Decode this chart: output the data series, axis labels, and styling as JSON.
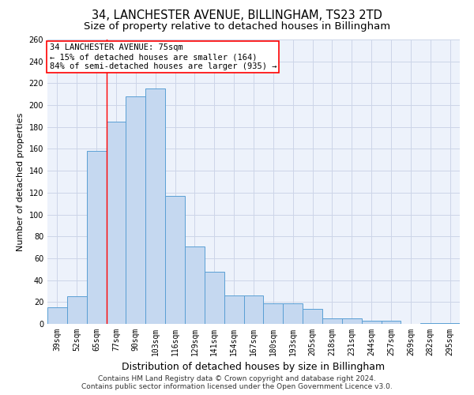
{
  "title1": "34, LANCHESTER AVENUE, BILLINGHAM, TS23 2TD",
  "title2": "Size of property relative to detached houses in Billingham",
  "xlabel": "Distribution of detached houses by size in Billingham",
  "ylabel": "Number of detached properties",
  "categories": [
    "39sqm",
    "52sqm",
    "65sqm",
    "77sqm",
    "90sqm",
    "103sqm",
    "116sqm",
    "129sqm",
    "141sqm",
    "154sqm",
    "167sqm",
    "180sqm",
    "193sqm",
    "205sqm",
    "218sqm",
    "231sqm",
    "244sqm",
    "257sqm",
    "269sqm",
    "282sqm",
    "295sqm"
  ],
  "values": [
    15,
    25,
    158,
    185,
    208,
    215,
    117,
    71,
    48,
    26,
    26,
    19,
    19,
    14,
    5,
    5,
    3,
    3,
    0,
    1,
    1
  ],
  "bar_color": "#c5d8f0",
  "bar_edge_color": "#5a9fd4",
  "red_line_x": 2.5,
  "annotation_line1": "34 LANCHESTER AVENUE: 75sqm",
  "annotation_line2": "← 15% of detached houses are smaller (164)",
  "annotation_line3": "84% of semi-detached houses are larger (935) →",
  "annotation_box_color": "white",
  "annotation_box_edge": "red",
  "ylim": [
    0,
    260
  ],
  "yticks": [
    0,
    20,
    40,
    60,
    80,
    100,
    120,
    140,
    160,
    180,
    200,
    220,
    240,
    260
  ],
  "grid_color": "#ccd5e8",
  "bg_color": "#edf2fb",
  "footer1": "Contains HM Land Registry data © Crown copyright and database right 2024.",
  "footer2": "Contains public sector information licensed under the Open Government Licence v3.0.",
  "title1_fontsize": 10.5,
  "title2_fontsize": 9.5,
  "xlabel_fontsize": 9,
  "ylabel_fontsize": 8,
  "tick_fontsize": 7,
  "annotation_fontsize": 7.5,
  "footer_fontsize": 6.5
}
